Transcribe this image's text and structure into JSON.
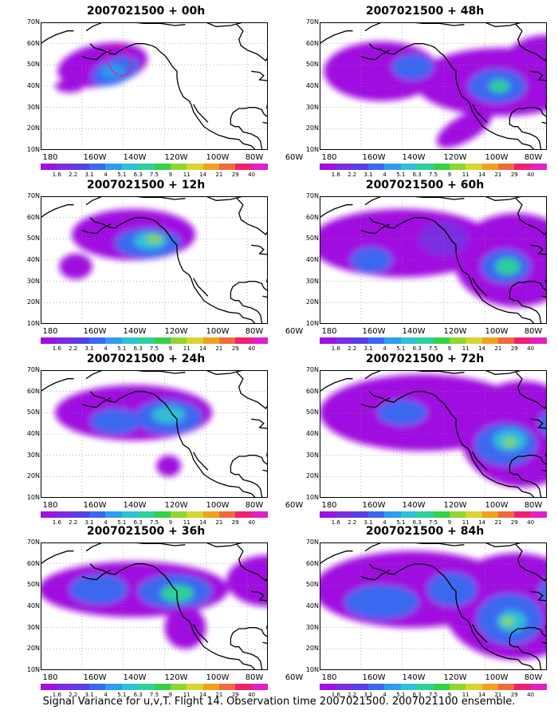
{
  "colorbar": {
    "labels": [
      "1.6",
      "2.2",
      "3.1",
      "4",
      "5.1",
      "6.3",
      "7.5",
      "9",
      "11",
      "14",
      "21",
      "29",
      "40"
    ],
    "colors": [
      "#a010e0",
      "#7a2ee0",
      "#5540e8",
      "#3a68f0",
      "#2e9cf0",
      "#2fc0d8",
      "#2dd09a",
      "#36d048",
      "#8fd62e",
      "#d8d530",
      "#f2a020",
      "#f06a3a",
      "#f02070",
      "#e020c8"
    ]
  },
  "axes": {
    "y_labels": [
      "70N",
      "60N",
      "50N",
      "40N",
      "30N",
      "20N",
      "10N"
    ],
    "x_labels": [
      "180",
      "160W",
      "140W",
      "120W",
      "100W",
      "80W",
      "60W"
    ]
  },
  "panels": [
    {
      "title": "2007021500 + 00h"
    },
    {
      "title": "2007021500 + 48h"
    },
    {
      "title": "2007021500 + 12h"
    },
    {
      "title": "2007021500 + 60h"
    },
    {
      "title": "2007021500 + 24h"
    },
    {
      "title": "2007021500 + 72h"
    },
    {
      "title": "2007021500 + 36h"
    },
    {
      "title": "2007021500 + 84h"
    }
  ],
  "footer": "Signal Variance for u,v,T. Flight 14. Observation time 2007021500. 2007021100 ensemble."
}
